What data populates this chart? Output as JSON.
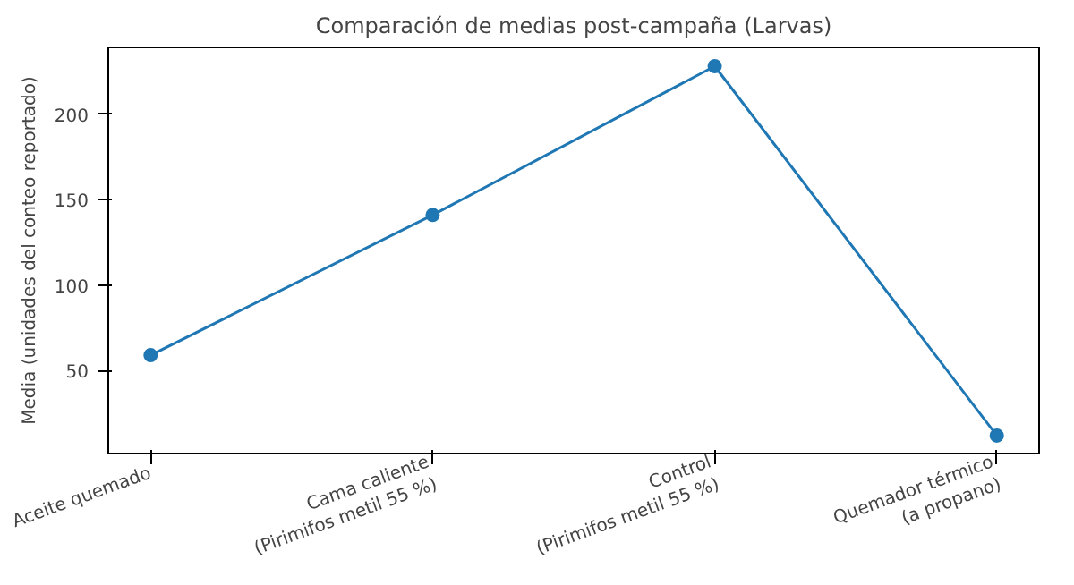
{
  "chart_data": {
    "type": "line",
    "title": "Comparación de medias post-campaña (Larvas)",
    "ylabel": "Media (unidades del conteo reportado)",
    "categories": [
      "Aceite quemado",
      "Cama caliente\n(Pirimifos metil 55 %)",
      "Control\n(Pirimifos metil 55 %)",
      "Quemador térmico\n(a propano)"
    ],
    "series": [
      {
        "color": "#1f77b4",
        "values": [
          59,
          141,
          228,
          12
        ]
      }
    ],
    "ylim": [
      1.5,
      239
    ],
    "yticks": [
      50,
      100,
      150,
      200
    ],
    "marker": "circle",
    "line_style": "solid"
  }
}
